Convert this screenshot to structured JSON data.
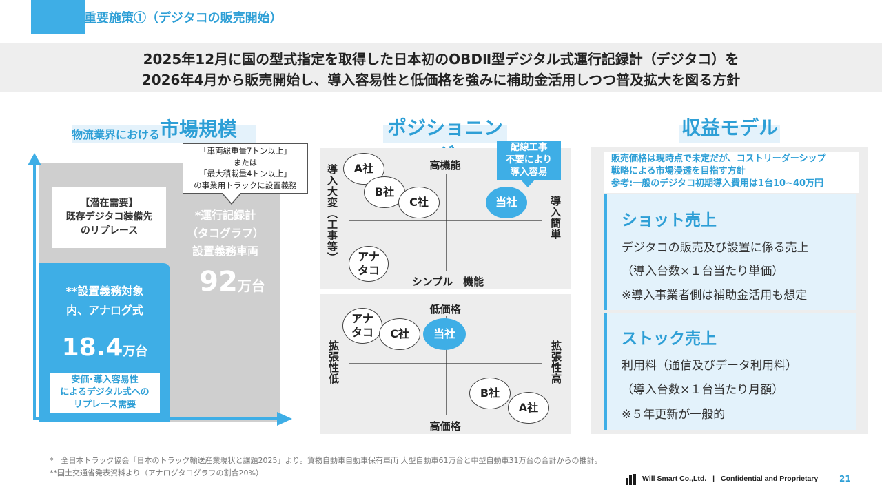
{
  "header": {
    "title": "重要施策①（デジタコの販売開始）"
  },
  "lead": {
    "line1": "2025年12月に国の型式指定を取得した日本初のOBDⅡ型デジタル式運行記録計（デジタコ）を",
    "line2": "2026年4月から販売開始し、導入容易性と低価格を強みに補助金活用しつつ普及拡大を図る方針"
  },
  "market": {
    "heading_small": "物流業界における",
    "heading_large": "市場規模",
    "callout": {
      "l1": "「車両総重量7トン以上」",
      "l2": "または",
      "l3": "「最大積載量4トン以上」",
      "l4": "の事業用トラックに設置義務"
    },
    "latent": {
      "l1": "【潜在需要】",
      "l2": "既存デジタコ装備先",
      "l3": "のリプレース"
    },
    "required": {
      "l1": "*運行記録計",
      "l2": "（タコグラフ）",
      "l3": "設置義務車両",
      "num": "92",
      "unit": "万台"
    },
    "analog": {
      "l1": "**設置義務対象",
      "l2": "内、アナログ式",
      "num": "18.4",
      "unit": "万台",
      "box1": "安価･導入容易性",
      "box2": "によるデジタル式への",
      "box3": "リプレース需要"
    }
  },
  "positioning": {
    "heading": "ポジショニング",
    "badge": {
      "l1": "配線工事",
      "l2": "不要により",
      "l3": "導入容易"
    },
    "top": {
      "y_top": "高機能",
      "y_bottom": "シンプル　機能",
      "x_left": "導入大変（工事等）",
      "x_right": "導入簡単",
      "companies": {
        "a": "A社",
        "b": "B社",
        "c": "C社",
        "analog_l1": "アナ",
        "analog_l2": "タコ",
        "ours": "当社"
      }
    },
    "bottom": {
      "y_top": "低価格",
      "y_bottom": "高価格",
      "x_left": "拡張性低",
      "x_right": "拡張性高",
      "companies": {
        "analog_l1": "アナ",
        "analog_l2": "タコ",
        "c": "C社",
        "ours": "当社",
        "b": "B社",
        "a": "A社"
      }
    }
  },
  "revenue": {
    "heading": "収益モデル",
    "note": {
      "l1": "販売価格は現時点で未定だが、コストリーダーシップ",
      "l2": "戦略による市場浸透を目指す方針",
      "l3": "参考:一般のデジタコ初期導入費用は1台10~40万円"
    },
    "shot": {
      "title": "ショット売上",
      "l1": "デジタコの販売及び設置に係る売上",
      "l2": "（導入台数×１台当たり単価）",
      "l3": "※導入事業者側は補助金活用も想定"
    },
    "stock": {
      "title": "ストック売上",
      "l1": "利用料（通信及びデータ利用料）",
      "l2": "（導入台数×１台当たり月額）",
      "l3": "※５年更新が一般的"
    }
  },
  "footnotes": {
    "f1": "*　全日本トラック協会「日本のトラック輸送産業現状と課題2025」より。貨物自動車自動車保有車両 大型自動車61万台と中型自動車31万台の合計からの推計。",
    "f2": "**国土交通省発表資料より（アナログタコグラフの割合20%）"
  },
  "footer": {
    "company": "Will Smart Co.,Ltd.",
    "sep": "|",
    "conf": "Confidential and Proprietary",
    "page": "21"
  },
  "colors": {
    "accent": "#3eaee6",
    "header_text": "#2e9fd6",
    "gray_band": "#eeeeee",
    "panel": "#ededed",
    "market_gray": "#cfcfcf",
    "stock_box": "#e3f2fb"
  }
}
